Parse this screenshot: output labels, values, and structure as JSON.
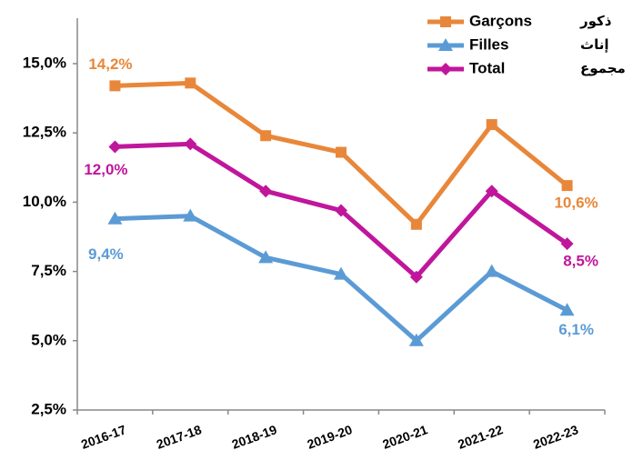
{
  "chart_data": {
    "type": "line",
    "categories": [
      "2016-17",
      "2017-18",
      "2018-19",
      "2019-20",
      "2020-21",
      "2021-22",
      "2022-23"
    ],
    "series": [
      {
        "name": "Garçons",
        "name_ar": "ذكور",
        "color": "#e8873a",
        "marker": "square",
        "values": [
          14.2,
          14.3,
          12.4,
          11.8,
          9.2,
          12.8,
          10.6
        ],
        "value_labels": [
          "14,2%",
          null,
          null,
          null,
          null,
          null,
          "10,6%"
        ]
      },
      {
        "name": "Filles",
        "name_ar": "إناث",
        "color": "#5b9bd5",
        "marker": "triangle",
        "values": [
          9.4,
          9.5,
          8.0,
          7.4,
          5.0,
          7.5,
          6.1
        ],
        "value_labels": [
          "9,4%",
          null,
          null,
          null,
          null,
          null,
          "6,1%"
        ]
      },
      {
        "name": "Total",
        "name_ar": "مجموع",
        "color": "#c0169c",
        "marker": "diamond",
        "values": [
          12.0,
          12.1,
          10.4,
          9.7,
          7.3,
          10.4,
          8.5
        ],
        "value_labels": [
          "12,0%",
          null,
          null,
          null,
          null,
          null,
          "8,5%"
        ]
      }
    ],
    "ylim": [
      2.5,
      15
    ],
    "yticks": [
      {
        "value": 2.5,
        "label": "2,5%"
      },
      {
        "value": 5,
        "label": "5,0%"
      },
      {
        "value": 7.5,
        "label": "7,5%"
      },
      {
        "value": 10,
        "label": "10,0%"
      },
      {
        "value": 12.5,
        "label": "12,5%"
      },
      {
        "value": 15,
        "label": "15,0%"
      }
    ],
    "grid": false,
    "legend": "top-right"
  }
}
